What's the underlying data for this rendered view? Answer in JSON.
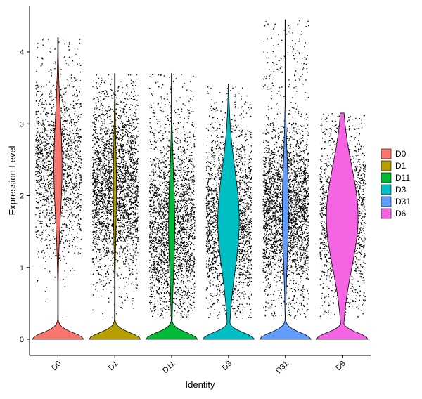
{
  "chart_data": {
    "type": "violin",
    "xlabel": "Identity",
    "ylabel": "Expression Level",
    "ylim": [
      -0.25,
      4.5
    ],
    "yticks": [
      0,
      1,
      2,
      3,
      4
    ],
    "y_tick_labels": [
      "0",
      "1",
      "2",
      "3",
      "4"
    ],
    "legend_position": "right",
    "grid": false,
    "categories": [
      "D0",
      "D1",
      "D11",
      "D3",
      "D31",
      "D6"
    ],
    "series": [
      {
        "name": "D0",
        "color": "#F8766D",
        "max": 4.2,
        "mode_at_zero": true,
        "upper_bulge_center": 2.4,
        "upper_bulge_halfwidth": 0.16,
        "point_density": 0.6
      },
      {
        "name": "D1",
        "color": "#B79F00",
        "max": 3.7,
        "mode_at_zero": true,
        "upper_bulge_center": 2.1,
        "upper_bulge_halfwidth": 0.06,
        "point_density": 1.0
      },
      {
        "name": "D11",
        "color": "#00BA38",
        "max": 3.7,
        "mode_at_zero": true,
        "upper_bulge_center": 1.6,
        "upper_bulge_halfwidth": 0.12,
        "point_density": 0.9
      },
      {
        "name": "D3",
        "color": "#00BFC4",
        "max": 3.55,
        "mode_at_zero": true,
        "upper_bulge_center": 1.65,
        "upper_bulge_halfwidth": 0.42,
        "point_density": 0.85
      },
      {
        "name": "D31",
        "color": "#619CFF",
        "max": 4.45,
        "mode_at_zero": true,
        "upper_bulge_center": 1.8,
        "upper_bulge_halfwidth": 0.12,
        "point_density": 1.1
      },
      {
        "name": "D6",
        "color": "#F564E3",
        "max": 3.15,
        "mode_at_zero": true,
        "upper_bulge_center": 1.7,
        "upper_bulge_halfwidth": 0.62,
        "point_density": 0.55
      }
    ]
  }
}
